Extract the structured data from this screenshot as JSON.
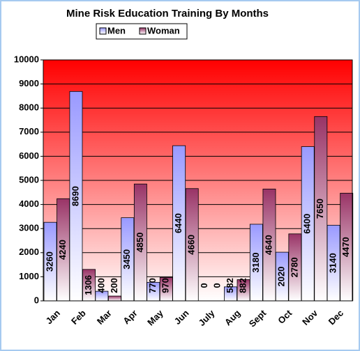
{
  "chart_data": {
    "type": "bar",
    "title": "Mine Risk Education Training By Months",
    "categories": [
      "Jan",
      "Feb",
      "Mar",
      "Apr",
      "May",
      "Jun",
      "July",
      "Aug",
      "Sept",
      "Oct",
      "Nov",
      "Dec"
    ],
    "series": [
      {
        "name": "Men",
        "color": "#9999ff",
        "values": [
          3260,
          8690,
          400,
          3450,
          770,
          6440,
          0,
          582,
          3180,
          2020,
          6400,
          3140
        ]
      },
      {
        "name": "Woman",
        "color": "#993366",
        "values": [
          4240,
          1306,
          200,
          4850,
          970,
          4660,
          0,
          882,
          4640,
          2780,
          7650,
          4470
        ]
      }
    ],
    "ylim": [
      0,
      10000
    ],
    "yticks": [
      0,
      1000,
      2000,
      3000,
      4000,
      5000,
      6000,
      7000,
      8000,
      9000,
      10000
    ],
    "grid": true,
    "legend": "top"
  }
}
